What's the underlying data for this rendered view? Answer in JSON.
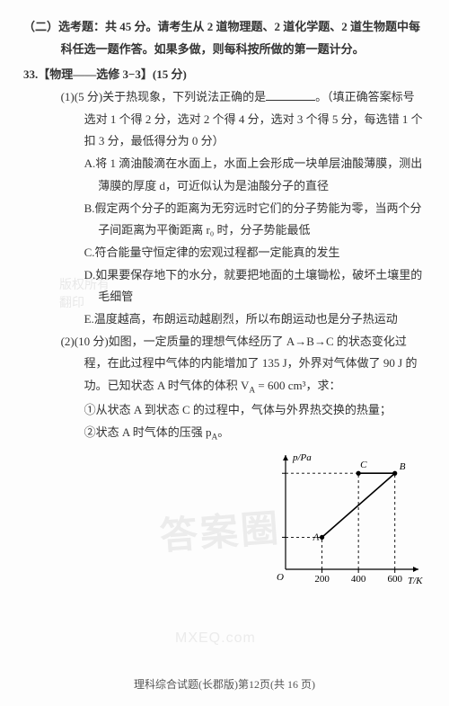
{
  "colors": {
    "text": "#333333",
    "bg": "#fdfdfd",
    "wm": "#bdbdbd",
    "axis": "#000000",
    "line": "#000000",
    "dash": "#000000",
    "grid": "#000000"
  },
  "section2": {
    "title_bold": "（二）选考题：共 45 分。请考生从 2 道物理题、2 道化学题、2 道生物题中每科任选一题作答。如果多做，则每科按所做的第一题计分。"
  },
  "q33": {
    "heading": "33.【物理——选修 3−3】(15 分)",
    "p1": {
      "lead": "(1)(5 分)关于热现象，下列说法正确的是",
      "tail": "。（填正确答案标号选对 1 个得 2 分，选对 2 个得 4 分，选对 3 个得 5 分，每选错 1 个扣 3 分，最低得分为 0 分）"
    },
    "opts": {
      "A": "A.将 1 滴油酸滴在水面上，水面上会形成一块单层油酸薄膜，测出薄膜的厚度 d，可近似认为是油酸分子的直径",
      "B": "B.假定两个分子的距离为无穷远时它们的分子势能为零，当两个分子间距离为平衡距离 r₀ 时，分子势能最低",
      "C": "C.符合能量守恒定律的宏观过程都一定能真的发生",
      "D": "D.如果要保存地下的水分，就要把地面的土壤锄松，破坏土壤里的毛细管",
      "E": "E.温度越高，布朗运动越剧烈，所以布朗运动也是分子热运动"
    },
    "p2": {
      "lead": "(2)(10 分)如图，一定质量的理想气体经历了 A→B→C 的状态变化过程，在此过程中气体的内能增加了 135 J，外界对气体做了 90 J 的功。已知状态 A 时气体的体积 V",
      "sub": "A",
      "eq": " = 600 cm³，求：",
      "c1": "①从状态 A 到状态 C 的过程中，气体与外界热交换的热量；",
      "c2": "②状态 A 时气体的压强 p",
      "c2sub": "A",
      "c2tail": "。"
    }
  },
  "chart": {
    "type": "line",
    "width": 190,
    "height": 155,
    "margin": {
      "l": 34,
      "r": 14,
      "t": 10,
      "b": 24
    },
    "bg": "#fdfdfd",
    "axis_color": "#000000",
    "line_color": "#000000",
    "axis_width": 1.2,
    "line_width": 1.6,
    "font_size": 11,
    "xlabel": "T/K",
    "ylabel": "p/Pa",
    "xaxis": {
      "min": 0,
      "max": 700,
      "ticks": [
        200,
        400,
        600
      ]
    },
    "yaxis": {
      "min": 0,
      "max": 3.4,
      "ticks_at": [
        1.0,
        3.0
      ]
    },
    "points": {
      "A": {
        "T": 200,
        "p": 1.0,
        "label": "A"
      },
      "C": {
        "T": 400,
        "p": 3.0,
        "label": "C"
      },
      "B": {
        "T": 600,
        "p": 3.0,
        "label": "B"
      }
    },
    "segments": [
      {
        "from": "A",
        "to": "B",
        "style": "solid"
      },
      {
        "from": "B",
        "to": "C",
        "style": "solid"
      }
    ],
    "guides": [
      {
        "kind": "v",
        "at": 200,
        "to_p": 1.0
      },
      {
        "kind": "v",
        "at": 400,
        "to_p": 3.0
      },
      {
        "kind": "v",
        "at": 600,
        "to_p": 3.0
      },
      {
        "kind": "h",
        "at": 1.0,
        "to_T": 200
      },
      {
        "kind": "h",
        "at": 3.0,
        "to_T": 400
      }
    ],
    "origin_label": "O"
  },
  "watermarks": {
    "left_lines": [
      "版权所有",
      "    翻印"
    ],
    "center": "答案圈",
    "url": "MXEQ.com"
  },
  "footer": "理科综合试题(长郡版)第12页(共 16 页)"
}
